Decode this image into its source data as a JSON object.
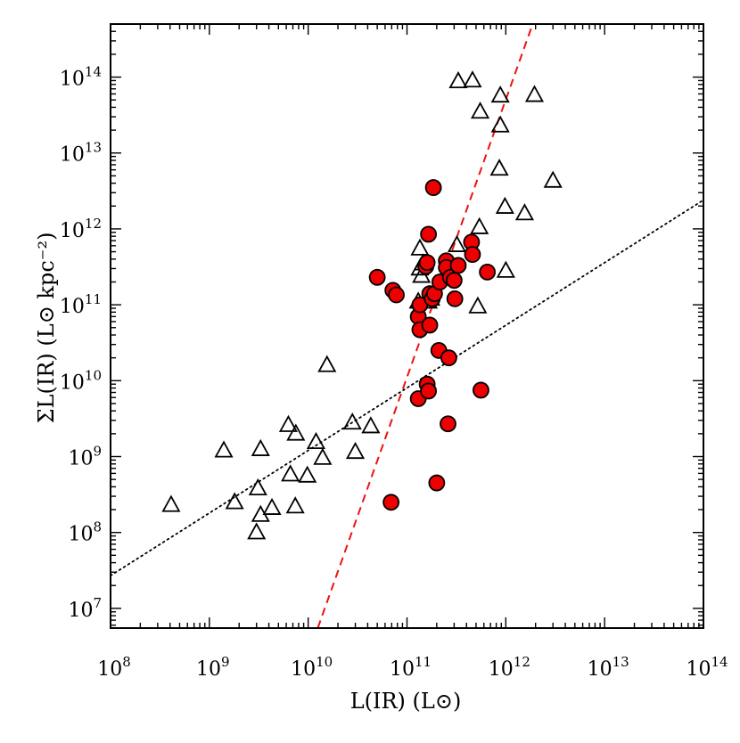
{
  "chart_data": {
    "type": "scatter",
    "title": "",
    "xlabel": "L(IR) (L⊙)",
    "ylabel": "ΣL(IR) (L⊙ kpc⁻²)",
    "x_scale": "log",
    "y_scale": "log",
    "xlim": [
      100000000.0,
      100000000000000.0
    ],
    "ylim": [
      5500000.0,
      500000000000000.0
    ],
    "x_ticks": [
      {
        "value": 100000000.0,
        "base": "10",
        "exp": "8"
      },
      {
        "value": 1000000000.0,
        "base": "10",
        "exp": "9"
      },
      {
        "value": 10000000000.0,
        "base": "10",
        "exp": "10"
      },
      {
        "value": 100000000000.0,
        "base": "10",
        "exp": "11"
      },
      {
        "value": 1000000000000.0,
        "base": "10",
        "exp": "12"
      },
      {
        "value": 10000000000000.0,
        "base": "10",
        "exp": "13"
      },
      {
        "value": 100000000000000.0,
        "base": "10",
        "exp": "14"
      }
    ],
    "y_ticks": [
      {
        "value": 10000000.0,
        "base": "10",
        "exp": "7"
      },
      {
        "value": 100000000.0,
        "base": "10",
        "exp": "8"
      },
      {
        "value": 1000000000.0,
        "base": "10",
        "exp": "9"
      },
      {
        "value": 10000000000.0,
        "base": "10",
        "exp": "10"
      },
      {
        "value": 100000000000.0,
        "base": "10",
        "exp": "11"
      },
      {
        "value": 1000000000000.0,
        "base": "10",
        "exp": "12"
      },
      {
        "value": 10000000000000.0,
        "base": "10",
        "exp": "13"
      },
      {
        "value": 100000000000000.0,
        "base": "10",
        "exp": "14"
      }
    ],
    "grid": false,
    "legend": "none",
    "series": [
      {
        "marker": "triangle-open",
        "color": "#000000",
        "points": [
          [
            410000000.0,
            230000000.0
          ],
          [
            1400000000.0,
            1200000000.0
          ],
          [
            1800000000.0,
            250000000.0
          ],
          [
            3100000000.0,
            380000000.0
          ],
          [
            3300000000.0,
            1250000000.0
          ],
          [
            3300000000.0,
            170000000.0
          ],
          [
            3000000000.0,
            100000000.0
          ],
          [
            4300000000.0,
            210000000.0
          ],
          [
            6300000000.0,
            2600000000.0
          ],
          [
            6600000000.0,
            580000000.0
          ],
          [
            7500000000.0,
            2000000000.0
          ],
          [
            7400000000.0,
            220000000.0
          ],
          [
            9800000000.0,
            560000000.0
          ],
          [
            12000000000.0,
            1550000000.0
          ],
          [
            14000000000.0,
            960000000.0
          ],
          [
            15500000000.0,
            16000000000.0
          ],
          [
            28000000000.0,
            2800000000.0
          ],
          [
            30000000000.0,
            1150000000.0
          ],
          [
            43000000000.0,
            2500000000.0
          ],
          [
            130000000000.0,
            110000000000.0
          ],
          [
            140000000000.0,
            240000000000.0
          ],
          [
            135000000000.0,
            300000000000.0
          ],
          [
            145000000000.0,
            350000000000.0
          ],
          [
            135000000000.0,
            550000000000.0
          ],
          [
            165000000000.0,
            110000000000.0
          ],
          [
            175000000000.0,
            120000000000.0
          ],
          [
            320000000000.0,
            610000000000.0
          ],
          [
            330000000000.0,
            88000000000000.0
          ],
          [
            460000000000.0,
            90000000000000.0
          ],
          [
            550000000000.0,
            35000000000000.0
          ],
          [
            540000000000.0,
            1050000000000.0
          ],
          [
            520000000000.0,
            95000000000.0
          ],
          [
            880000000000.0,
            57000000000000.0
          ],
          [
            880000000000.0,
            23000000000000.0
          ],
          [
            860000000000.0,
            6200000000000.0
          ],
          [
            980000000000.0,
            1950000000000.0
          ],
          [
            1000000000000.0,
            280000000000.0
          ],
          [
            1550000000000.0,
            1600000000000.0
          ],
          [
            1950000000000.0,
            58000000000000.0
          ],
          [
            3000000000000.0,
            4300000000000.0
          ]
        ]
      },
      {
        "marker": "circle-filled",
        "color": "#ee0000",
        "points": [
          [
            50000000000.0,
            230000000000.0
          ],
          [
            72000000000.0,
            155000000000.0
          ],
          [
            78000000000.0,
            135000000000.0
          ],
          [
            69000000000.0,
            250000000.0
          ],
          [
            130000000000.0,
            70000000000.0
          ],
          [
            135000000000.0,
            47000000000.0
          ],
          [
            135000000000.0,
            100000000000.0
          ],
          [
            130000000000.0,
            5800000000.0
          ],
          [
            155000000000.0,
            320000000000.0
          ],
          [
            160000000000.0,
            360000000000.0
          ],
          [
            165000000000.0,
            850000000000.0
          ],
          [
            160000000000.0,
            9000000000.0
          ],
          [
            165000000000.0,
            7300000000.0
          ],
          [
            170000000000.0,
            54000000000.0
          ],
          [
            170000000000.0,
            140000000000.0
          ],
          [
            180000000000.0,
            120000000000.0
          ],
          [
            190000000000.0,
            140000000000.0
          ],
          [
            185000000000.0,
            3500000000000.0
          ],
          [
            200000000000.0,
            450000000.0
          ],
          [
            210000000000.0,
            25000000000.0
          ],
          [
            215000000000.0,
            200000000000.0
          ],
          [
            250000000000.0,
            380000000000.0
          ],
          [
            250000000000.0,
            310000000000.0
          ],
          [
            260000000000.0,
            2700000000.0
          ],
          [
            265000000000.0,
            20000000000.0
          ],
          [
            275000000000.0,
            230000000000.0
          ],
          [
            300000000000.0,
            210000000000.0
          ],
          [
            305000000000.0,
            120000000000.0
          ],
          [
            330000000000.0,
            330000000000.0
          ],
          [
            450000000000.0,
            670000000000.0
          ],
          [
            460000000000.0,
            460000000000.0
          ],
          [
            560000000000.0,
            7500000000.0
          ],
          [
            650000000000.0,
            270000000000.0
          ]
        ]
      }
    ],
    "lines": [
      {
        "style": "dotted",
        "color": "#000000",
        "points": [
          [
            100000000.0,
            27000000.0
          ],
          [
            100000000000000.0,
            2400000000000.0
          ]
        ]
      },
      {
        "style": "dashed",
        "color": "#ee1111",
        "points": [
          [
            12500000000.0,
            5500000.0
          ],
          [
            1870000000000.0,
            500000000000000.0
          ]
        ]
      }
    ]
  }
}
